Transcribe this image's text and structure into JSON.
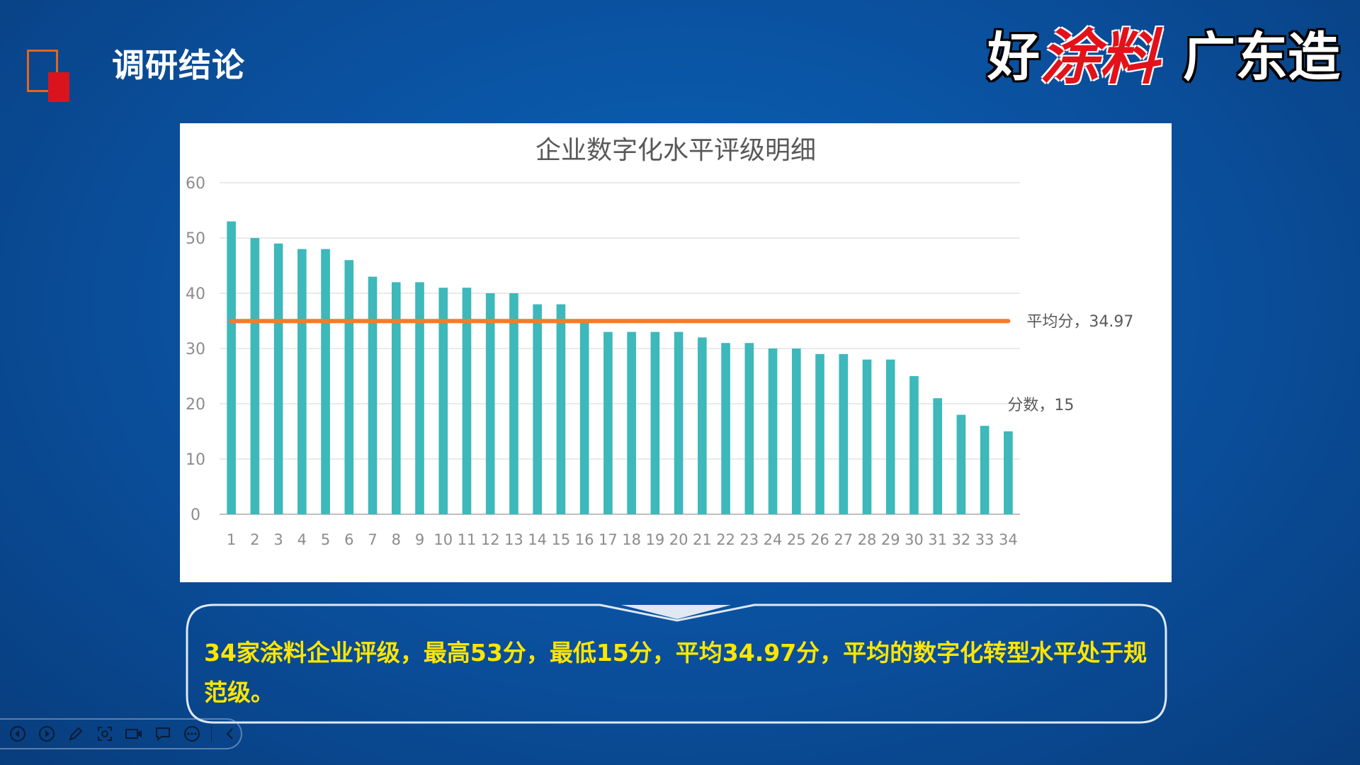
{
  "header": {
    "title": "调研结论"
  },
  "brand": {
    "part1": "好",
    "part2": "涂料",
    "part3": "广东造"
  },
  "chart_data": {
    "type": "bar",
    "title": "企业数字化水平评级明细",
    "categories": [
      "1",
      "2",
      "3",
      "4",
      "5",
      "6",
      "7",
      "8",
      "9",
      "10",
      "11",
      "12",
      "13",
      "14",
      "15",
      "16",
      "17",
      "18",
      "19",
      "20",
      "21",
      "22",
      "23",
      "24",
      "25",
      "26",
      "27",
      "28",
      "29",
      "30",
      "31",
      "32",
      "33",
      "34"
    ],
    "series": [
      {
        "name": "分数",
        "values": [
          53,
          50,
          49,
          48,
          48,
          46,
          43,
          42,
          42,
          41,
          41,
          40,
          40,
          38,
          38,
          35,
          33,
          33,
          33,
          33,
          32,
          31,
          31,
          30,
          30,
          29,
          29,
          28,
          28,
          25,
          21,
          18,
          16,
          15
        ]
      },
      {
        "name": "平均分",
        "type": "line",
        "value": 34.97
      }
    ],
    "ylim": [
      0,
      60
    ],
    "yticks": [
      0,
      10,
      20,
      30,
      40,
      50,
      60
    ],
    "grid": true,
    "bar_color": "#3db8bb",
    "line_color": "#ef7d31",
    "data_labels": {
      "last_bar": "分数，15",
      "average": "平均分，34.97"
    }
  },
  "summary": {
    "text": "34家涂料企业评级，最高53分，最低15分，平均34.97分，平均的数字化转型水平处于规范级。"
  },
  "toolbar": {
    "icons": [
      "prev-icon",
      "next-icon",
      "pen-icon",
      "zoom-icon",
      "camera-icon",
      "comment-icon",
      "more-icon",
      "collapse-icon"
    ]
  }
}
